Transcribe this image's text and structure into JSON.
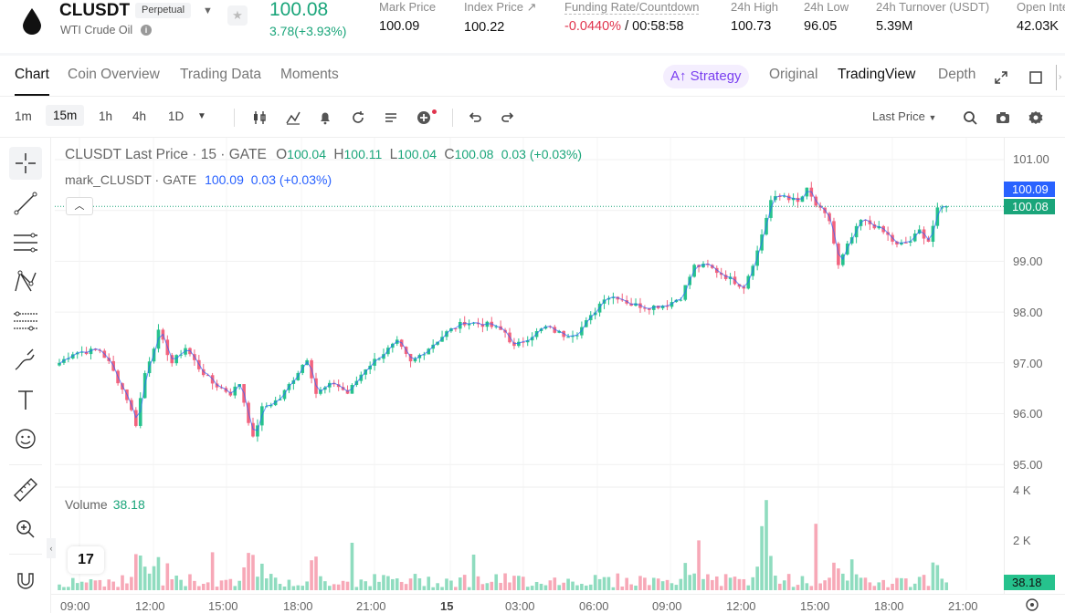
{
  "header": {
    "symbol": "CLUSDT",
    "badge": "Perpetual",
    "subtitle": "WTI Crude Oil",
    "last_price": "100.08",
    "change": "3.78(+3.93%)",
    "stats": [
      {
        "label": "Mark Price",
        "value": "100.09"
      },
      {
        "label": "Index Price ↗",
        "value": "100.22"
      },
      {
        "label": "Funding Rate/Countdown",
        "value_neg": "-0.0440%",
        "value_rest": " / 00:58:58"
      },
      {
        "label": "24h High",
        "value": "100.73"
      },
      {
        "label": "24h Low",
        "value": "96.05"
      },
      {
        "label": "24h Turnover (USDT)",
        "value": "5.39M"
      },
      {
        "label": "Open Inte",
        "value": "42.03K"
      }
    ]
  },
  "tabs": {
    "left": [
      "Chart",
      "Coin Overview",
      "Trading Data",
      "Moments"
    ],
    "strategy": "A↑ Strategy",
    "right": [
      "Original",
      "TradingView",
      "Depth"
    ]
  },
  "toolbar": {
    "timeframes": [
      "1m",
      "15m",
      "1h",
      "4h",
      "1D"
    ],
    "price_type": "Last Price"
  },
  "legend": {
    "line1_prefix": "CLUSDT Last Price · 15 · GATE",
    "o_label": "O",
    "o": "100.04",
    "h_label": "H",
    "h": "100.11",
    "l_label": "L",
    "l": "100.04",
    "c_label": "C",
    "c": "100.08",
    "chg": "0.03 (+0.03%)",
    "line2_prefix": "mark_CLUSDT · GATE",
    "mark_val": "100.09",
    "mark_chg": "0.03 (+0.03%)"
  },
  "volume": {
    "label": "Volume",
    "value": "38.18"
  },
  "yaxis": [
    "101.00",
    "100.00",
    "99.00",
    "98.00",
    "97.00",
    "96.00",
    "95.00"
  ],
  "vol_axis": [
    "4 K",
    "2 K"
  ],
  "price_tags": {
    "mark": "100.09",
    "last": "100.08",
    "vol": "38.18"
  },
  "xaxis": [
    "09:00",
    "12:00",
    "15:00",
    "18:00",
    "21:00",
    "15",
    "03:00",
    "06:00",
    "09:00",
    "12:00",
    "15:00",
    "18:00",
    "21:00"
  ],
  "colors": {
    "up": "#26c28d",
    "down": "#f2637e",
    "mark": "#2962ff",
    "accent": "#7a3ff0"
  },
  "chart_data": {
    "type": "candlestick",
    "title": "CLUSDT Last Price · 15 · GATE",
    "y_range": [
      94.7,
      101.3
    ],
    "volume_range": [
      0,
      4000
    ],
    "key_path": [
      {
        "t": 0,
        "p": 97.0
      },
      {
        "t": 3,
        "p": 97.2
      },
      {
        "t": 9,
        "p": 97.25
      },
      {
        "t": 11,
        "p": 97.0
      },
      {
        "t": 15,
        "p": 96.3
      },
      {
        "t": 17,
        "p": 95.8
      },
      {
        "t": 19,
        "p": 96.8
      },
      {
        "t": 22,
        "p": 97.6
      },
      {
        "t": 25,
        "p": 97.0
      },
      {
        "t": 28,
        "p": 97.3
      },
      {
        "t": 31,
        "p": 96.9
      },
      {
        "t": 34,
        "p": 96.6
      },
      {
        "t": 38,
        "p": 96.4
      },
      {
        "t": 40,
        "p": 96.6
      },
      {
        "t": 43,
        "p": 95.5
      },
      {
        "t": 45,
        "p": 96.1
      },
      {
        "t": 49,
        "p": 96.3
      },
      {
        "t": 52,
        "p": 96.7
      },
      {
        "t": 55,
        "p": 97.1
      },
      {
        "t": 57,
        "p": 96.4
      },
      {
        "t": 61,
        "p": 96.6
      },
      {
        "t": 64,
        "p": 96.4
      },
      {
        "t": 68,
        "p": 96.9
      },
      {
        "t": 72,
        "p": 97.2
      },
      {
        "t": 75,
        "p": 97.4
      },
      {
        "t": 78,
        "p": 97.0
      },
      {
        "t": 82,
        "p": 97.3
      },
      {
        "t": 86,
        "p": 97.6
      },
      {
        "t": 90,
        "p": 97.8
      },
      {
        "t": 95,
        "p": 97.75
      },
      {
        "t": 99,
        "p": 97.6
      },
      {
        "t": 101,
        "p": 97.3
      },
      {
        "t": 104,
        "p": 97.5
      },
      {
        "t": 108,
        "p": 97.7
      },
      {
        "t": 112,
        "p": 97.55
      },
      {
        "t": 115,
        "p": 97.6
      },
      {
        "t": 118,
        "p": 97.9
      },
      {
        "t": 121,
        "p": 98.3
      },
      {
        "t": 124,
        "p": 98.3
      },
      {
        "t": 127,
        "p": 98.15
      },
      {
        "t": 131,
        "p": 98.1
      },
      {
        "t": 135,
        "p": 98.15
      },
      {
        "t": 138,
        "p": 98.3
      },
      {
        "t": 141,
        "p": 98.9
      },
      {
        "t": 144,
        "p": 98.9
      },
      {
        "t": 147,
        "p": 98.75
      },
      {
        "t": 150,
        "p": 98.6
      },
      {
        "t": 152,
        "p": 98.5
      },
      {
        "t": 155,
        "p": 99.2
      },
      {
        "t": 158,
        "p": 100.2
      },
      {
        "t": 161,
        "p": 100.3
      },
      {
        "t": 164,
        "p": 100.15
      },
      {
        "t": 166,
        "p": 100.4
      },
      {
        "t": 168,
        "p": 100.1
      },
      {
        "t": 171,
        "p": 99.8
      },
      {
        "t": 173,
        "p": 98.9
      },
      {
        "t": 175,
        "p": 99.3
      },
      {
        "t": 178,
        "p": 99.8
      },
      {
        "t": 181,
        "p": 99.7
      },
      {
        "t": 184,
        "p": 99.5
      },
      {
        "t": 186,
        "p": 99.3
      },
      {
        "t": 189,
        "p": 99.4
      },
      {
        "t": 191,
        "p": 99.6
      },
      {
        "t": 193,
        "p": 99.4
      },
      {
        "t": 195,
        "p": 100.0
      },
      {
        "t": 197,
        "p": 100.08
      }
    ],
    "volume_peaks": [
      {
        "t": 157,
        "v": 3800
      },
      {
        "t": 156,
        "v": 2700
      },
      {
        "t": 142,
        "v": 2100
      },
      {
        "t": 168,
        "v": 2800
      },
      {
        "t": 65,
        "v": 2000
      },
      {
        "t": 92,
        "v": 1500
      },
      {
        "t": 34,
        "v": 1600
      },
      {
        "t": 176,
        "v": 1300
      }
    ]
  }
}
